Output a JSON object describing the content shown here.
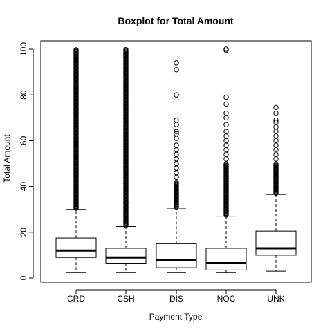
{
  "chart_data": {
    "type": "boxplot",
    "title": "Boxplot for Total Amount",
    "xlabel": "Payment Type",
    "ylabel": "Total Amount",
    "ylim": [
      0,
      100
    ],
    "yticks": [
      0,
      20,
      40,
      60,
      80,
      100
    ],
    "categories": [
      "CRD",
      "CSH",
      "DIS",
      "NOC",
      "UNK"
    ],
    "boxes": [
      {
        "category": "CRD",
        "whisker_low": 2.5,
        "q1": 9.0,
        "median": 12.0,
        "q3": 17.5,
        "whisker_high": 30.0,
        "outlier_dense_range": [
          30.5,
          100
        ],
        "outliers": []
      },
      {
        "category": "CSH",
        "whisker_low": 2.5,
        "q1": 6.5,
        "median": 9.0,
        "q3": 13.0,
        "whisker_high": 22.5,
        "outlier_dense_range": [
          23,
          100
        ],
        "outliers": []
      },
      {
        "category": "DIS",
        "whisker_low": 2.5,
        "q1": 4.5,
        "median": 8.0,
        "q3": 15.0,
        "whisker_high": 30.5,
        "outlier_dense_range": [
          31,
          42
        ],
        "outliers": [
          44,
          46,
          48,
          50,
          52,
          54,
          56,
          58,
          61,
          63,
          64,
          67,
          69,
          80,
          91,
          94
        ]
      },
      {
        "category": "NOC",
        "whisker_low": 2.5,
        "q1": 3.5,
        "median": 6.5,
        "q3": 13.0,
        "whisker_high": 27.0,
        "outlier_dense_range": [
          27.5,
          50
        ],
        "outliers": [
          52,
          54,
          56,
          58,
          60,
          62,
          64,
          67,
          70,
          72,
          76,
          79,
          99.5,
          100
        ]
      },
      {
        "category": "UNK",
        "whisker_low": 3.0,
        "q1": 10.0,
        "median": 13.0,
        "q3": 20.5,
        "whisker_high": 36.5,
        "outlier_dense_range": [
          37,
          50
        ],
        "outliers": [
          52,
          54,
          56,
          58,
          60,
          62,
          64,
          66,
          68,
          69,
          72,
          74.5
        ]
      }
    ]
  }
}
